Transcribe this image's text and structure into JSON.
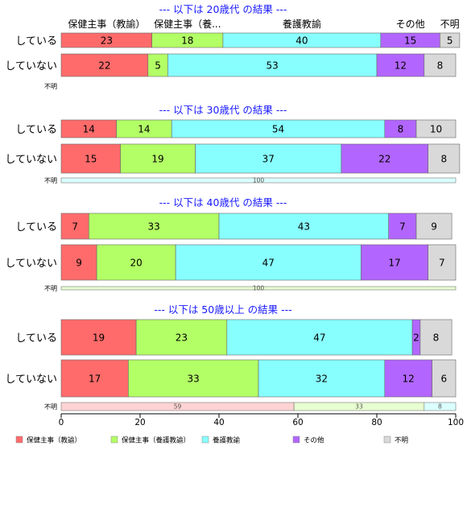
{
  "chart_data": {
    "type": "bar",
    "orientation": "horizontal",
    "stacked": true,
    "percent": true,
    "xlim": [
      0,
      100
    ],
    "xticks": [
      0,
      20,
      40,
      60,
      80,
      100
    ],
    "grid": false,
    "legend_position": "bottom",
    "series_names": [
      "保健主事（教諭）",
      "保健主事（養護教諭）",
      "養護教諭",
      "その他",
      "不明"
    ],
    "header_labels": [
      "保健主事（教諭）",
      "保健主事（養...",
      "養護教諭",
      "その他",
      "不明"
    ],
    "colors": [
      "#ff6b6b",
      "#b3ff66",
      "#88ffff",
      "#b266ff",
      "#d9d9d9"
    ],
    "panels": [
      {
        "title": "--- 以下は 20歳代 の結果 ---",
        "rows": [
          {
            "label": "している",
            "values": [
              23,
              18,
              40,
              15,
              5
            ]
          },
          {
            "label": "していない",
            "values": [
              22,
              5,
              53,
              12,
              8
            ]
          },
          {
            "label": "不明",
            "values": []
          }
        ]
      },
      {
        "title": "--- 以下は 30歳代 の結果 ---",
        "rows": [
          {
            "label": "している",
            "values": [
              14,
              14,
              54,
              8,
              10
            ]
          },
          {
            "label": "していない",
            "values": [
              15,
              19,
              37,
              22,
              8
            ]
          },
          {
            "label": "不明",
            "values": [
              0,
              0,
              100,
              0,
              0
            ]
          }
        ]
      },
      {
        "title": "--- 以下は 40歳代 の結果 ---",
        "rows": [
          {
            "label": "している",
            "values": [
              7,
              33,
              43,
              7,
              9
            ]
          },
          {
            "label": "していない",
            "values": [
              9,
              20,
              47,
              17,
              7
            ]
          },
          {
            "label": "不明",
            "values": [
              0,
              100,
              0,
              0,
              0
            ]
          }
        ]
      },
      {
        "title": "--- 以下は 50歳以上 の結果 ---",
        "rows": [
          {
            "label": "している",
            "values": [
              19,
              23,
              47,
              2,
              8
            ]
          },
          {
            "label": "していない",
            "values": [
              17,
              33,
              32,
              12,
              6
            ]
          },
          {
            "label": "不明",
            "values": [
              59,
              33,
              8,
              0,
              0
            ]
          }
        ]
      }
    ]
  }
}
